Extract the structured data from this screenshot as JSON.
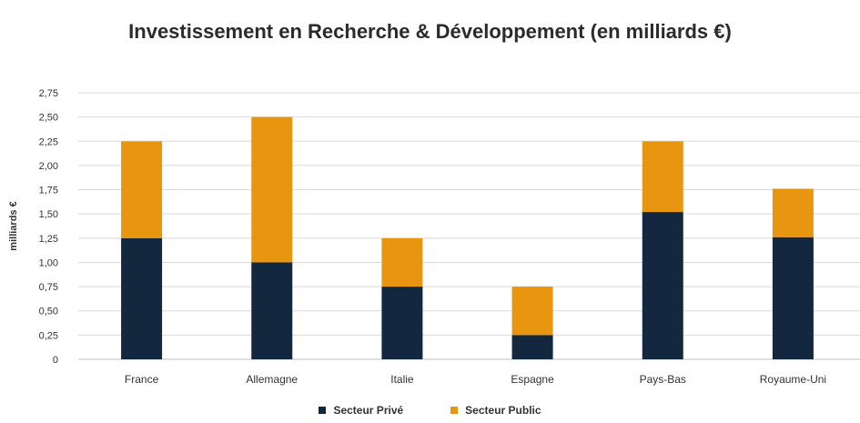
{
  "chart_data": {
    "type": "bar",
    "stacked": true,
    "title": "Investissement en Recherche & Développement (en milliards €)",
    "ylabel": "milliards €",
    "xlabel": "",
    "ylim": [
      0,
      2.75
    ],
    "yticks": [
      "0",
      "0,25",
      "0,50",
      "0,75",
      "1,00",
      "1,25",
      "1,50",
      "1,75",
      "2,00",
      "2,25",
      "2,50",
      "2,75"
    ],
    "categories": [
      "France",
      "Allemagne",
      "Italie",
      "Espagne",
      "Pays-Bas",
      "Royaume-Uni"
    ],
    "series": [
      {
        "name": "Secteur Privé",
        "color": "#13283f",
        "values": [
          1.25,
          1.0,
          0.75,
          0.25,
          1.52,
          1.26
        ]
      },
      {
        "name": "Secteur Public",
        "color": "#e8950f",
        "values": [
          1.0,
          1.5,
          0.5,
          0.5,
          0.73,
          0.5
        ]
      }
    ],
    "grid": true,
    "legend": "bottom-center"
  }
}
